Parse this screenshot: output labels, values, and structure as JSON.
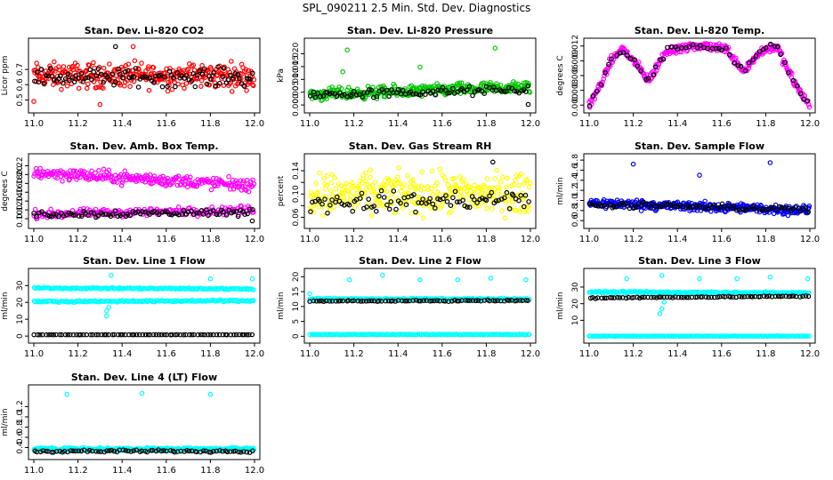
{
  "page": {
    "title": "SPL_090211  2.5 Min. Std. Dev. Diagnostics"
  },
  "colors": {
    "black": "#000000",
    "red": "#ff0000",
    "green": "#00c800",
    "magenta": "#ff00ff",
    "yellow": "#ffff00",
    "blue": "#0000ff",
    "cyan": "#00ffff"
  },
  "chart_data": [
    {
      "type": "scatter",
      "title": "Stan. Dev. Li-820 CO2",
      "ylabel": "Licor ppm",
      "xlim": [
        11.0,
        12.0
      ],
      "ylim": [
        0.45,
        0.87
      ],
      "xticks": [
        11.0,
        11.2,
        11.4,
        11.6,
        11.8,
        12.0
      ],
      "xtick_labels": [
        "11.0",
        "11.2",
        "11.4",
        "11.6",
        "11.8",
        "12.0"
      ],
      "yticks": [
        0.5,
        0.6,
        0.7
      ],
      "ytick_labels": [
        "0.5",
        "0.6",
        "0.7"
      ],
      "series": [
        {
          "color": "#ff0000",
          "count": 320,
          "x": [
            11.0,
            12.0
          ],
          "y_mid": [
            0.66,
            0.66
          ],
          "spread": 0.07,
          "outliers": [
            [
              11.45,
              0.85
            ],
            [
              11.3,
              0.47
            ],
            [
              11.0,
              0.49
            ]
          ]
        },
        {
          "color": "#000000",
          "count": 100,
          "x": [
            11.0,
            12.0
          ],
          "y_mid": [
            0.65,
            0.65
          ],
          "spread": 0.05,
          "outliers": [
            [
              11.37,
              0.85
            ]
          ]
        }
      ]
    },
    {
      "type": "scatter",
      "title": "Stan. Dev. Li-820 Pressure",
      "ylabel": "kPa",
      "xlim": [
        11.0,
        12.0
      ],
      "ylim": [
        -0.001,
        0.024
      ],
      "xticks": [
        11.0,
        11.2,
        11.4,
        11.6,
        11.8,
        12.0
      ],
      "xtick_labels": [
        "11.0",
        "11.2",
        "11.4",
        "11.6",
        "11.8",
        "12.0"
      ],
      "yticks": [
        0.0,
        0.005,
        0.01,
        0.015,
        0.02
      ],
      "ytick_labels": [
        "0.000",
        "0.005",
        "0.010",
        "0.015",
        "0.020"
      ],
      "series": [
        {
          "color": "#00c800",
          "count": 330,
          "x": [
            11.0,
            12.0
          ],
          "y_mid": [
            0.004,
            0.007
          ],
          "spread": 0.002,
          "outliers": [
            [
              11.17,
              0.0215
            ],
            [
              11.84,
              0.0222
            ],
            [
              11.5,
              0.0148
            ],
            [
              11.15,
              0.013
            ]
          ]
        },
        {
          "color": "#000000",
          "count": 90,
          "x": [
            11.0,
            12.0
          ],
          "y_mid": [
            0.004,
            0.006
          ],
          "spread": 0.0015,
          "outliers": [
            [
              11.99,
              0.0002
            ]
          ]
        }
      ]
    },
    {
      "type": "scatter",
      "title": "Stan. Dev. Li-820 Temp.",
      "ylabel": "degrees C",
      "xlim": [
        11.0,
        12.0
      ],
      "ylim": [
        -0.0005,
        0.0125
      ],
      "xticks": [
        11.0,
        11.2,
        11.4,
        11.6,
        11.8,
        12.0
      ],
      "xtick_labels": [
        "11.0",
        "11.2",
        "11.4",
        "11.6",
        "11.8",
        "12.0"
      ],
      "yticks": [
        0.0,
        0.003,
        0.006,
        0.009,
        0.012
      ],
      "ytick_labels": [
        "0.000",
        "0.003",
        "0.006",
        "0.009",
        "0.012"
      ],
      "series": [
        {
          "color": "#ff00ff",
          "count": 330,
          "x": [
            11.0,
            12.0
          ],
          "y_mid": [
            0.001,
            0.0
          ],
          "spread": 0.0008,
          "profile_x": [
            11.0,
            11.05,
            11.1,
            11.15,
            11.2,
            11.27,
            11.35,
            11.45,
            11.55,
            11.62,
            11.7,
            11.78,
            11.85,
            11.9,
            11.95,
            12.0
          ],
          "profile_y": [
            0.0,
            0.004,
            0.009,
            0.0115,
            0.009,
            0.005,
            0.011,
            0.012,
            0.012,
            0.0115,
            0.007,
            0.011,
            0.012,
            0.007,
            0.003,
            0.0
          ],
          "outliers": []
        },
        {
          "color": "#000000",
          "count": 60,
          "x": [
            11.0,
            12.0
          ],
          "y_mid": [
            0.0,
            0.0
          ],
          "spread": 0.0006,
          "profile_x": [
            11.0,
            11.05,
            11.1,
            11.15,
            11.2,
            11.27,
            11.35,
            11.45,
            11.55,
            11.62,
            11.7,
            11.78,
            11.85,
            11.9,
            11.95,
            12.0
          ],
          "profile_y": [
            0.0,
            0.004,
            0.009,
            0.011,
            0.009,
            0.005,
            0.011,
            0.012,
            0.012,
            0.011,
            0.007,
            0.011,
            0.012,
            0.007,
            0.003,
            0.0
          ],
          "outliers": []
        }
      ]
    },
    {
      "type": "scatter",
      "title": "Stan. Dev. Amb. Box Temp.",
      "ylabel": "degrees C",
      "xlim": [
        11.0,
        12.0
      ],
      "ylim": [
        0.09,
        0.235
      ],
      "xticks": [
        11.0,
        11.2,
        11.4,
        11.6,
        11.8,
        12.0
      ],
      "xtick_labels": [
        "11.0",
        "11.2",
        "11.4",
        "11.6",
        "11.8",
        "12.0"
      ],
      "yticks": [
        0.1,
        0.12,
        0.14,
        0.16,
        0.18,
        0.2,
        0.22
      ],
      "ytick_labels": [
        "0.10",
        "0.12",
        "0.14",
        "0.16",
        "0.18",
        "0.20",
        "0.22"
      ],
      "series": [
        {
          "color": "#ff00ff",
          "count": 260,
          "x": [
            11.0,
            12.0
          ],
          "y_mid": [
            0.205,
            0.175
          ],
          "spread": 0.012,
          "outliers": []
        },
        {
          "color": "#ff00ff",
          "count": 200,
          "x": [
            11.0,
            12.0
          ],
          "y_mid": [
            0.11,
            0.12
          ],
          "spread": 0.008,
          "outliers": []
        },
        {
          "color": "#000000",
          "count": 90,
          "x": [
            11.0,
            12.0
          ],
          "y_mid": [
            0.11,
            0.115
          ],
          "spread": 0.007,
          "outliers": [
            [
              11.99,
              0.095
            ]
          ]
        }
      ]
    },
    {
      "type": "scatter",
      "title": "Stan. Dev. Gas Stream RH",
      "ylabel": "percent",
      "xlim": [
        11.0,
        12.0
      ],
      "ylim": [
        0.05,
        0.16
      ],
      "xticks": [
        11.0,
        11.2,
        11.4,
        11.6,
        11.8,
        12.0
      ],
      "xtick_labels": [
        "11.0",
        "11.2",
        "11.4",
        "11.6",
        "11.8",
        "12.0"
      ],
      "yticks": [
        0.06,
        0.08,
        0.1,
        0.12,
        0.14
      ],
      "ytick_labels": [
        "0.06",
        "",
        "0.10",
        "",
        "0.14"
      ],
      "series": [
        {
          "color": "#ffff00",
          "count": 330,
          "x": [
            11.0,
            12.0
          ],
          "y_mid": [
            0.1,
            0.1
          ],
          "spread": 0.03,
          "outliers": []
        },
        {
          "color": "#000000",
          "count": 90,
          "x": [
            11.0,
            12.0
          ],
          "y_mid": [
            0.085,
            0.09
          ],
          "spread": 0.015,
          "outliers": [
            [
              11.83,
              0.155
            ]
          ]
        }
      ]
    },
    {
      "type": "scatter",
      "title": "Stan. Dev. Sample Flow",
      "ylabel": "ml/min",
      "xlim": [
        11.0,
        12.0
      ],
      "ylim": [
        0.55,
        1.82
      ],
      "xticks": [
        11.0,
        11.2,
        11.4,
        11.6,
        11.8,
        12.0
      ],
      "xtick_labels": [
        "11.0",
        "11.2",
        "11.4",
        "11.6",
        "11.8",
        "12.0"
      ],
      "yticks": [
        0.6,
        0.8,
        1.0,
        1.2,
        1.4,
        1.6,
        1.8
      ],
      "ytick_labels": [
        "0.6",
        "0.8",
        "1.0",
        "1.2",
        "1.4",
        "1.6",
        "1.8"
      ],
      "series": [
        {
          "color": "#0000ff",
          "count": 340,
          "x": [
            11.0,
            12.0
          ],
          "y_mid": [
            0.95,
            0.8
          ],
          "spread": 0.08,
          "outliers": [
            [
              11.2,
              1.72
            ],
            [
              11.82,
              1.75
            ],
            [
              11.5,
              1.5
            ]
          ]
        },
        {
          "color": "#000000",
          "count": 90,
          "x": [
            11.0,
            12.0
          ],
          "y_mid": [
            0.92,
            0.82
          ],
          "spread": 0.05,
          "outliers": []
        }
      ]
    },
    {
      "type": "scatter",
      "title": "Stan. Dev. Line 1 Flow",
      "ylabel": "ml/min",
      "xlim": [
        11.0,
        12.0
      ],
      "ylim": [
        -1,
        37
      ],
      "xticks": [
        11.0,
        11.2,
        11.4,
        11.6,
        11.8,
        12.0
      ],
      "xtick_labels": [
        "11.0",
        "11.2",
        "11.4",
        "11.6",
        "11.8",
        "12.0"
      ],
      "yticks": [
        0,
        10,
        20,
        30
      ],
      "ytick_labels": [
        "0",
        "10",
        "20",
        "30"
      ],
      "series": [
        {
          "color": "#00ffff",
          "count": 170,
          "x": [
            11.0,
            12.0
          ],
          "y_mid": [
            28.5,
            28.0
          ],
          "spread": 0.4,
          "outliers": [
            [
              11.35,
              36
            ],
            [
              11.8,
              34
            ],
            [
              11.99,
              34
            ]
          ]
        },
        {
          "color": "#00ffff",
          "count": 170,
          "x": [
            11.0,
            12.0
          ],
          "y_mid": [
            20.5,
            21.0
          ],
          "spread": 0.4,
          "outliers": [
            [
              11.33,
              15
            ],
            [
              11.33,
              12
            ],
            [
              11.34,
              17
            ]
          ]
        },
        {
          "color": "#000000",
          "count": 80,
          "x": [
            11.0,
            12.0
          ],
          "y_mid": [
            0.8,
            0.8
          ],
          "spread": 0.05,
          "outliers": []
        }
      ]
    },
    {
      "type": "scatter",
      "title": "Stan. Dev. Line 2 Flow",
      "ylabel": "ml/min",
      "xlim": [
        11.0,
        12.0
      ],
      "ylim": [
        -0.5,
        21
      ],
      "xticks": [
        11.0,
        11.2,
        11.4,
        11.6,
        11.8,
        12.0
      ],
      "xtick_labels": [
        "11.0",
        "11.2",
        "11.4",
        "11.6",
        "11.8",
        "12.0"
      ],
      "yticks": [
        0,
        5,
        10,
        15,
        20
      ],
      "ytick_labels": [
        "0",
        "5",
        "10",
        "15",
        "20"
      ],
      "series": [
        {
          "color": "#00ffff",
          "count": 160,
          "x": [
            11.0,
            12.0
          ],
          "y_mid": [
            12.5,
            12.5
          ],
          "spread": 0.25,
          "outliers": [
            [
              11.0,
              14.3
            ],
            [
              11.18,
              19
            ],
            [
              11.33,
              20.5
            ],
            [
              11.5,
              19
            ],
            [
              11.67,
              19
            ],
            [
              11.82,
              19.5
            ],
            [
              11.98,
              19
            ]
          ]
        },
        {
          "color": "#000000",
          "count": 80,
          "x": [
            11.0,
            12.0
          ],
          "y_mid": [
            11.8,
            12.0
          ],
          "spread": 0.15,
          "outliers": []
        },
        {
          "color": "#00ffff",
          "count": 160,
          "x": [
            11.0,
            12.0
          ],
          "y_mid": [
            0.6,
            0.6
          ],
          "spread": 0.08,
          "outliers": []
        }
      ]
    },
    {
      "type": "scatter",
      "title": "Stan. Dev. Line 3 Flow",
      "ylabel": "ml/min",
      "xlim": [
        11.0,
        12.0
      ],
      "ylim": [
        -0.5,
        38
      ],
      "xticks": [
        11.0,
        11.2,
        11.4,
        11.6,
        11.8,
        12.0
      ],
      "xtick_labels": [
        "11.0",
        "11.2",
        "11.4",
        "11.6",
        "11.8",
        "12.0"
      ],
      "yticks": [
        10,
        20,
        30
      ],
      "ytick_labels": [
        "10",
        "20",
        "30"
      ],
      "series": [
        {
          "color": "#00ffff",
          "count": 180,
          "x": [
            11.0,
            12.0
          ],
          "y_mid": [
            27.0,
            26.5
          ],
          "spread": 0.5,
          "outliers": [
            [
              11.17,
              35
            ],
            [
              11.33,
              37
            ],
            [
              11.5,
              35
            ],
            [
              11.67,
              35
            ],
            [
              11.82,
              36
            ],
            [
              11.99,
              35
            ],
            [
              11.33,
              17
            ],
            [
              11.34,
              21
            ],
            [
              11.32,
              14
            ]
          ]
        },
        {
          "color": "#000000",
          "count": 80,
          "x": [
            11.0,
            12.0
          ],
          "y_mid": [
            23.5,
            24.5
          ],
          "spread": 0.3,
          "outliers": []
        },
        {
          "color": "#00ffff",
          "count": 170,
          "x": [
            11.0,
            12.0
          ],
          "y_mid": [
            0.5,
            0.5
          ],
          "spread": 0.08,
          "outliers": []
        }
      ]
    },
    {
      "type": "scatter",
      "title": "Stan. Dev. Line 4 (LT) Flow",
      "ylabel": "ml/min",
      "xlim": [
        11.0,
        12.0
      ],
      "ylim": [
        0.27,
        1.52
      ],
      "xticks": [
        11.0,
        11.2,
        11.4,
        11.6,
        11.8,
        12.0
      ],
      "xtick_labels": [
        "11.0",
        "11.2",
        "11.4",
        "11.6",
        "11.8",
        "12.0"
      ],
      "yticks": [
        0.4,
        0.6,
        0.8,
        1.0,
        1.2
      ],
      "ytick_labels": [
        "0.4",
        "0.6",
        "0.8",
        "1.0",
        "1.2"
      ],
      "series": [
        {
          "color": "#00ffff",
          "count": 300,
          "x": [
            11.0,
            12.0
          ],
          "y_mid": [
            0.37,
            0.37
          ],
          "spread": 0.025,
          "outliers": [
            [
              11.15,
              1.44
            ],
            [
              11.49,
              1.46
            ],
            [
              11.8,
              1.44
            ]
          ]
        },
        {
          "color": "#000000",
          "count": 80,
          "x": [
            11.0,
            12.0
          ],
          "y_mid": [
            0.33,
            0.33
          ],
          "spread": 0.02,
          "outliers": []
        }
      ]
    }
  ]
}
